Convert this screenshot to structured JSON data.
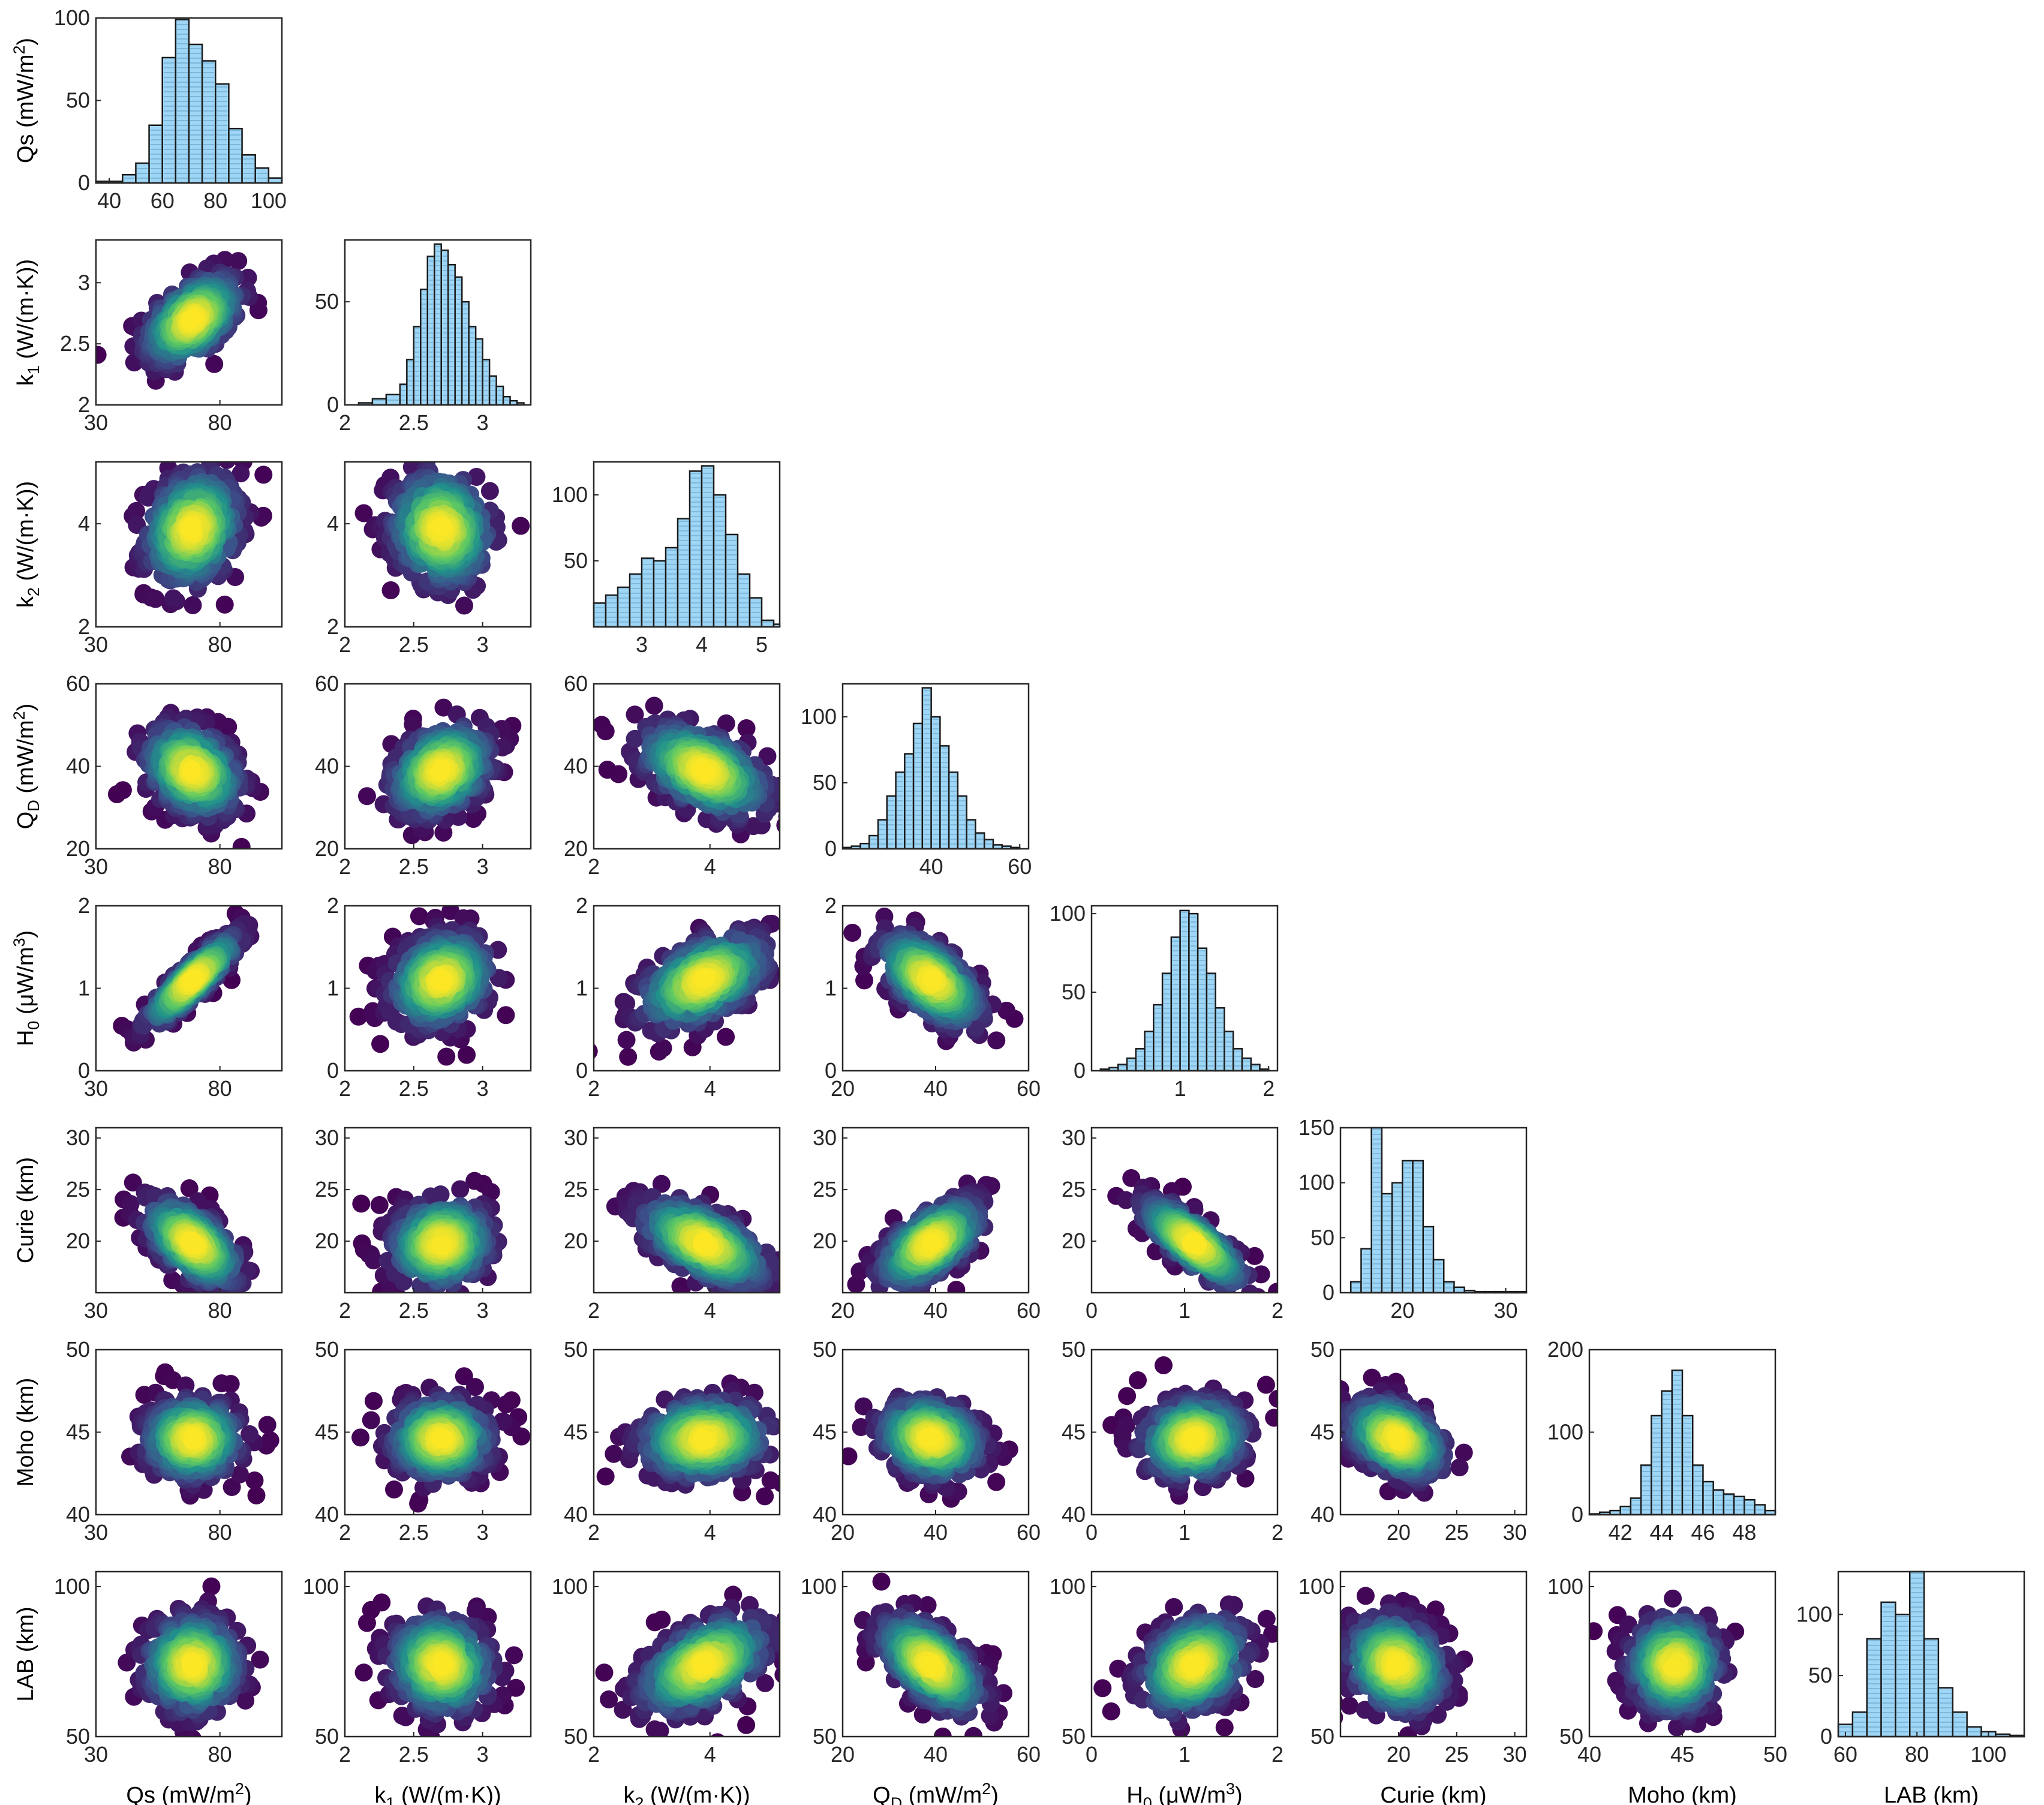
{
  "chart_data": {
    "type": "scatter",
    "layout": "corner-plot",
    "title": "",
    "colors": {
      "hist_fill": "#9fd6f5",
      "hist_edge": "#1a1a1a",
      "density_colormap": [
        "#440154",
        "#3b528b",
        "#21918c",
        "#5ec962",
        "#fde725"
      ]
    },
    "variables": [
      {
        "key": "Qs",
        "label": {
          "main": "Qs (mW/m",
          "sup": "2",
          "tail": ")"
        },
        "range": [
          30,
          105
        ],
        "hist_range": [
          35,
          105
        ],
        "ticks": [
          30,
          80
        ],
        "hist_ticks": [
          40,
          60,
          80,
          100
        ],
        "mean": 69,
        "std": 9.5
      },
      {
        "key": "k1",
        "label": {
          "main": "k",
          "sub": "1",
          "tail": " (W/(m·K))"
        },
        "range": [
          2,
          3.35
        ],
        "ticks": [
          2,
          2.5,
          3
        ],
        "mean": 2.7,
        "std": 0.18
      },
      {
        "key": "k2",
        "label": {
          "main": "k",
          "sub": "2",
          "tail": " (W/(m·K))"
        },
        "range": [
          2,
          5.2
        ],
        "hist_range": [
          2.2,
          5.3
        ],
        "ticks": [
          2,
          4
        ],
        "hist_ticks": [
          3,
          4,
          5
        ],
        "mean": 3.9,
        "std": 0.55
      },
      {
        "key": "QD",
        "label": {
          "main": "Q",
          "sub": "D",
          "tail": " (mW/m",
          "sup": "2",
          "tail2": ")"
        },
        "range": [
          20,
          60
        ],
        "hist_range": [
          20,
          62
        ],
        "ticks": [
          20,
          40,
          60
        ],
        "hist_ticks": [
          40,
          60
        ],
        "mean": 39,
        "std": 5.5
      },
      {
        "key": "H0",
        "label": {
          "main": "H",
          "sub": "0",
          "tail": " (μW/m",
          "sup": "3",
          "tail2": ")"
        },
        "range": [
          0,
          2
        ],
        "hist_range": [
          0,
          2.1
        ],
        "ticks": [
          0,
          1,
          2
        ],
        "hist_ticks": [
          1,
          2
        ],
        "mean": 1.1,
        "std": 0.28
      },
      {
        "key": "Curie",
        "label": {
          "main": "Curie (km)"
        },
        "range": [
          15,
          31
        ],
        "hist_range": [
          14,
          32
        ],
        "ticks": [
          20,
          25,
          30
        ],
        "hist_ticks": [
          20,
          30
        ],
        "mean": 19.8,
        "std": 2.1
      },
      {
        "key": "Moho",
        "label": {
          "main": "Moho (km)"
        },
        "range": [
          40,
          50
        ],
        "hist_range": [
          40.5,
          49.5
        ],
        "ticks": [
          40,
          45,
          50
        ],
        "hist_ticks": [
          42,
          44,
          46,
          48
        ],
        "mean": 44.6,
        "std": 1.2
      },
      {
        "key": "LAB",
        "label": {
          "main": "LAB (km)"
        },
        "range": [
          50,
          105
        ],
        "hist_range": [
          58,
          110
        ],
        "ticks": [
          50,
          100
        ],
        "hist_ticks": [
          60,
          80,
          100
        ],
        "mean": 74,
        "std": 8
      }
    ],
    "histograms": [
      {
        "variable": "Qs",
        "ylim": [
          0,
          100
        ],
        "yticks": [
          0,
          50,
          100
        ],
        "bin_edges": [
          35,
          40,
          45,
          50,
          55,
          60,
          65,
          70,
          75,
          80,
          85,
          90,
          95,
          100,
          105
        ],
        "counts": [
          1,
          1,
          5,
          12,
          35,
          76,
          99,
          84,
          74,
          60,
          33,
          17,
          9,
          3
        ]
      },
      {
        "variable": "k1",
        "ylim": [
          0,
          80
        ],
        "yticks": [
          0,
          50
        ],
        "bin_edges": [
          2.0,
          2.1,
          2.2,
          2.3,
          2.4,
          2.45,
          2.5,
          2.55,
          2.6,
          2.65,
          2.7,
          2.75,
          2.8,
          2.85,
          2.9,
          2.95,
          3.0,
          3.05,
          3.1,
          3.15,
          3.2,
          3.25,
          3.3
        ],
        "counts": [
          0,
          1,
          3,
          5,
          10,
          22,
          38,
          56,
          72,
          78,
          75,
          68,
          62,
          50,
          38,
          32,
          22,
          14,
          9,
          4,
          2,
          1
        ]
      },
      {
        "variable": "k2",
        "ylim": [
          0,
          125
        ],
        "yticks": [
          50,
          100
        ],
        "bin_edges": [
          2.2,
          2.4,
          2.6,
          2.8,
          3.0,
          3.2,
          3.4,
          3.6,
          3.8,
          4.0,
          4.2,
          4.4,
          4.6,
          4.8,
          5.0,
          5.2,
          5.3
        ],
        "counts": [
          18,
          24,
          30,
          40,
          52,
          50,
          60,
          82,
          118,
          122,
          100,
          70,
          40,
          22,
          5,
          2
        ]
      },
      {
        "variable": "QD",
        "ylim": [
          0,
          125
        ],
        "yticks": [
          0,
          50,
          100
        ],
        "bin_edges": [
          20,
          22,
          24,
          26,
          28,
          30,
          32,
          34,
          36,
          38,
          40,
          42,
          44,
          46,
          48,
          50,
          52,
          54,
          56,
          58,
          60
        ],
        "counts": [
          1,
          2,
          4,
          10,
          22,
          40,
          58,
          72,
          95,
          122,
          100,
          78,
          58,
          40,
          22,
          12,
          7,
          3,
          2,
          1
        ]
      },
      {
        "variable": "H0",
        "ylim": [
          0,
          105
        ],
        "yticks": [
          0,
          50,
          100
        ],
        "bin_edges": [
          0.1,
          0.2,
          0.3,
          0.4,
          0.5,
          0.6,
          0.7,
          0.8,
          0.9,
          1.0,
          1.1,
          1.2,
          1.3,
          1.4,
          1.5,
          1.6,
          1.7,
          1.8,
          1.9,
          2.0
        ],
        "counts": [
          1,
          2,
          4,
          8,
          14,
          25,
          42,
          62,
          85,
          102,
          100,
          78,
          62,
          40,
          25,
          14,
          8,
          4,
          1
        ]
      },
      {
        "variable": "Curie",
        "ylim": [
          0,
          150
        ],
        "yticks": [
          0,
          50,
          100,
          150
        ],
        "bin_edges": [
          14,
          15,
          16,
          17,
          18,
          19,
          20,
          21,
          22,
          23,
          24,
          25,
          26,
          27,
          28,
          29,
          30,
          31,
          32
        ],
        "counts": [
          0,
          10,
          40,
          150,
          90,
          100,
          120,
          120,
          60,
          30,
          10,
          5,
          2,
          1,
          1,
          1,
          1,
          1
        ]
      },
      {
        "variable": "Moho",
        "ylim": [
          0,
          200
        ],
        "yticks": [
          0,
          100,
          200
        ],
        "bin_edges": [
          40.5,
          41.0,
          41.5,
          42.0,
          42.5,
          43.0,
          43.5,
          44.0,
          44.5,
          45.0,
          45.5,
          46.0,
          46.5,
          47.0,
          47.5,
          48.0,
          48.5,
          49.0,
          49.5
        ],
        "counts": [
          1,
          3,
          5,
          10,
          20,
          60,
          120,
          150,
          175,
          120,
          60,
          40,
          30,
          25,
          22,
          18,
          12,
          5
        ]
      },
      {
        "variable": "LAB",
        "ylim": [
          0,
          135
        ],
        "yticks": [
          0,
          50,
          100
        ],
        "bin_edges": [
          58,
          62,
          66,
          70,
          74,
          78,
          82,
          86,
          90,
          94,
          98,
          102,
          106,
          110
        ],
        "counts": [
          10,
          20,
          80,
          110,
          100,
          135,
          80,
          40,
          20,
          8,
          4,
          2,
          1
        ]
      }
    ],
    "scatter_pairs": [
      {
        "x": "Qs",
        "y": "k1",
        "corr": 0.5
      },
      {
        "x": "Qs",
        "y": "k2",
        "corr": 0.2
      },
      {
        "x": "k1",
        "y": "k2",
        "corr": -0.1
      },
      {
        "x": "Qs",
        "y": "QD",
        "corr": -0.3
      },
      {
        "x": "k1",
        "y": "QD",
        "corr": 0.3
      },
      {
        "x": "k2",
        "y": "QD",
        "corr": -0.5
      },
      {
        "x": "Qs",
        "y": "H0",
        "corr": 0.9
      },
      {
        "x": "k1",
        "y": "H0",
        "corr": 0.2
      },
      {
        "x": "k2",
        "y": "H0",
        "corr": 0.5
      },
      {
        "x": "QD",
        "y": "H0",
        "corr": -0.6
      },
      {
        "x": "Qs",
        "y": "Curie",
        "corr": -0.6
      },
      {
        "x": "k1",
        "y": "Curie",
        "corr": 0.1
      },
      {
        "x": "k2",
        "y": "Curie",
        "corr": -0.6
      },
      {
        "x": "QD",
        "y": "Curie",
        "corr": 0.6
      },
      {
        "x": "H0",
        "y": "Curie",
        "corr": -0.8
      },
      {
        "x": "Qs",
        "y": "Moho",
        "corr": 0.0
      },
      {
        "x": "k1",
        "y": "Moho",
        "corr": 0.0
      },
      {
        "x": "k2",
        "y": "Moho",
        "corr": 0.1
      },
      {
        "x": "QD",
        "y": "Moho",
        "corr": -0.2
      },
      {
        "x": "H0",
        "y": "Moho",
        "corr": 0.1
      },
      {
        "x": "Curie",
        "y": "Moho",
        "corr": -0.4
      },
      {
        "x": "Qs",
        "y": "LAB",
        "corr": 0.0
      },
      {
        "x": "k1",
        "y": "LAB",
        "corr": -0.1
      },
      {
        "x": "k2",
        "y": "LAB",
        "corr": 0.5
      },
      {
        "x": "QD",
        "y": "LAB",
        "corr": -0.6
      },
      {
        "x": "H0",
        "y": "LAB",
        "corr": 0.3
      },
      {
        "x": "Curie",
        "y": "LAB",
        "corr": -0.2
      },
      {
        "x": "Moho",
        "y": "LAB",
        "corr": 0.0
      }
    ],
    "xlabel_row": [
      "Qs",
      "k1",
      "k2",
      "QD",
      "H0",
      "Curie",
      "Moho",
      "LAB"
    ],
    "ylabel_col": [
      "Qs",
      "k1",
      "k2",
      "QD",
      "H0",
      "Curie",
      "Moho",
      "LAB"
    ],
    "grid": false,
    "legend": "none"
  }
}
